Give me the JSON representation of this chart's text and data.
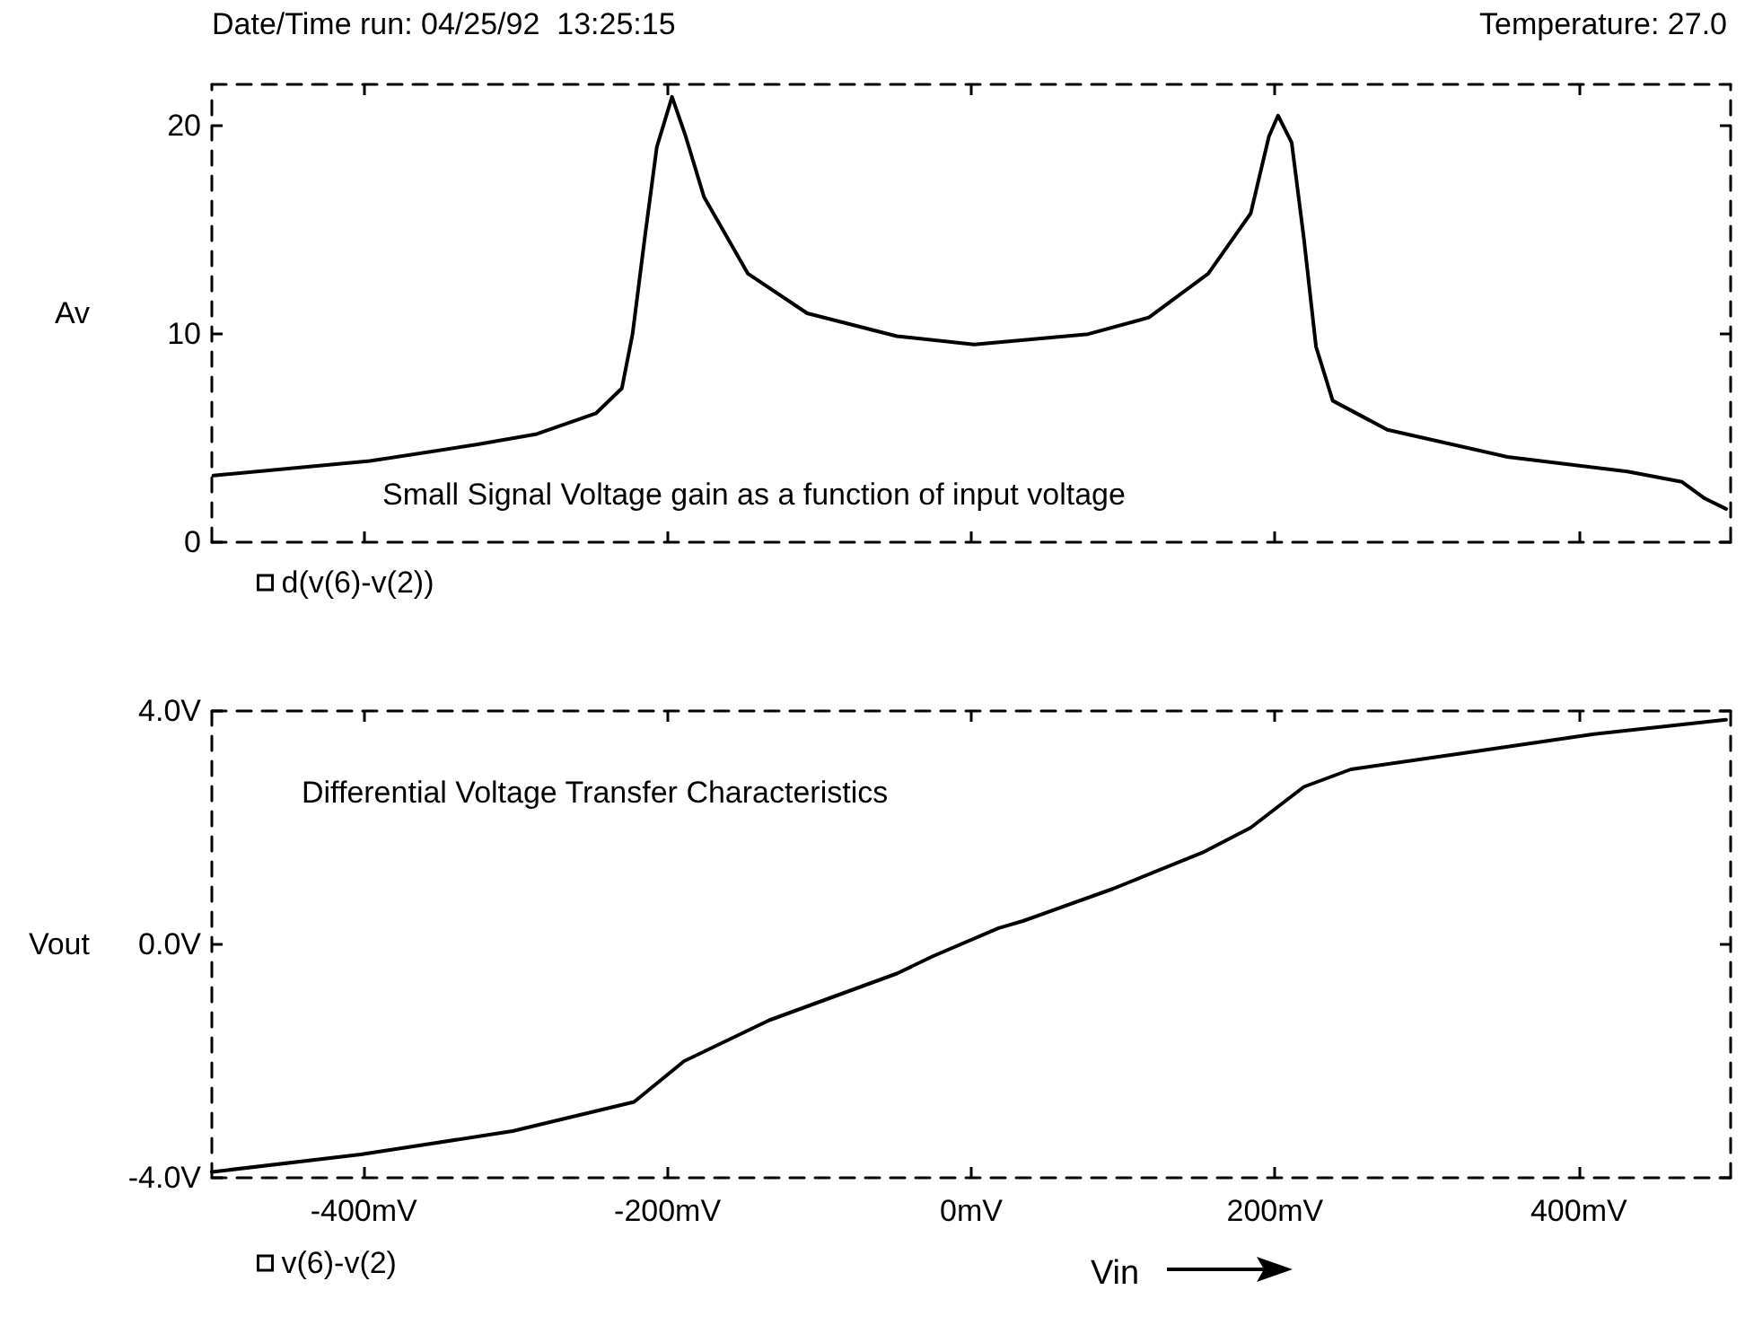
{
  "chart_data": [
    {
      "type": "line",
      "title": "Small Signal Voltage gain as a function of input voltage",
      "ylabel": "Av",
      "annotations": [
        "Date/Time run: 04/25/92  13:25:15",
        "Temperature: 27.0"
      ],
      "x": [
        -499,
        -396,
        -325,
        -286,
        -247,
        -230,
        -223,
        -215,
        -207,
        -197,
        -188,
        -176,
        -147,
        -108,
        -49,
        2,
        77,
        117,
        156,
        184,
        196,
        202,
        211,
        219,
        227,
        238,
        274,
        353,
        432,
        468,
        483,
        497
      ],
      "series": [
        {
          "name": "d(v(6)-v(2))",
          "color": "#000000",
          "values": [
            3.2,
            3.9,
            4.7,
            5.2,
            6.2,
            7.4,
            10,
            14.6,
            19,
            21.4,
            19.5,
            16.6,
            12.9,
            11,
            9.9,
            9.5,
            10,
            10.8,
            12.9,
            15.8,
            19.5,
            20.5,
            19.2,
            14.6,
            9.4,
            6.8,
            5.4,
            4.1,
            3.4,
            2.9,
            2.1,
            1.6
          ]
        }
      ],
      "xlim": [
        -500,
        500
      ],
      "xticks": [
        -400,
        -200,
        0,
        200,
        400
      ],
      "ylim": [
        0,
        22
      ],
      "yticks": [
        0,
        10,
        20
      ],
      "tick_labels": "y",
      "grid": false,
      "legend": "bottom left",
      "line_style": "solid",
      "marker": "none"
    },
    {
      "type": "line",
      "title": "Differential Voltage Transfer Characteristics",
      "ylabel": "Vout",
      "xlabel": "Vin",
      "x": [
        -500,
        -402,
        -302,
        -222,
        -189,
        -133,
        -49,
        -25,
        18,
        34,
        93,
        152,
        184,
        219,
        250,
        330,
        409,
        497
      ],
      "series": [
        {
          "name": "v(6)-v(2)",
          "color": "#000000",
          "values": [
            -3.9,
            -3.6,
            -3.2,
            -2.7,
            -2.0,
            -1.3,
            -0.5,
            -0.2,
            0.28,
            0.4,
            0.95,
            1.57,
            2.0,
            2.7,
            3.0,
            3.3,
            3.6,
            3.85
          ]
        }
      ],
      "xlim": [
        -500,
        500
      ],
      "xticks": [
        {
          "value": -400,
          "label": "-400mV"
        },
        {
          "value": -200,
          "label": "-200mV"
        },
        {
          "value": 0,
          "label": "0mV"
        },
        {
          "value": 200,
          "label": "200mV"
        },
        {
          "value": 400,
          "label": "400mV"
        }
      ],
      "ylim": [
        -4,
        4
      ],
      "yticks": [
        {
          "value": -4,
          "label": "-4.0V"
        },
        {
          "value": 0,
          "label": "0.0V"
        },
        {
          "value": 4,
          "label": "4.0V"
        }
      ],
      "grid": false,
      "legend": "bottom left",
      "line_style": "solid",
      "marker": "none"
    }
  ]
}
